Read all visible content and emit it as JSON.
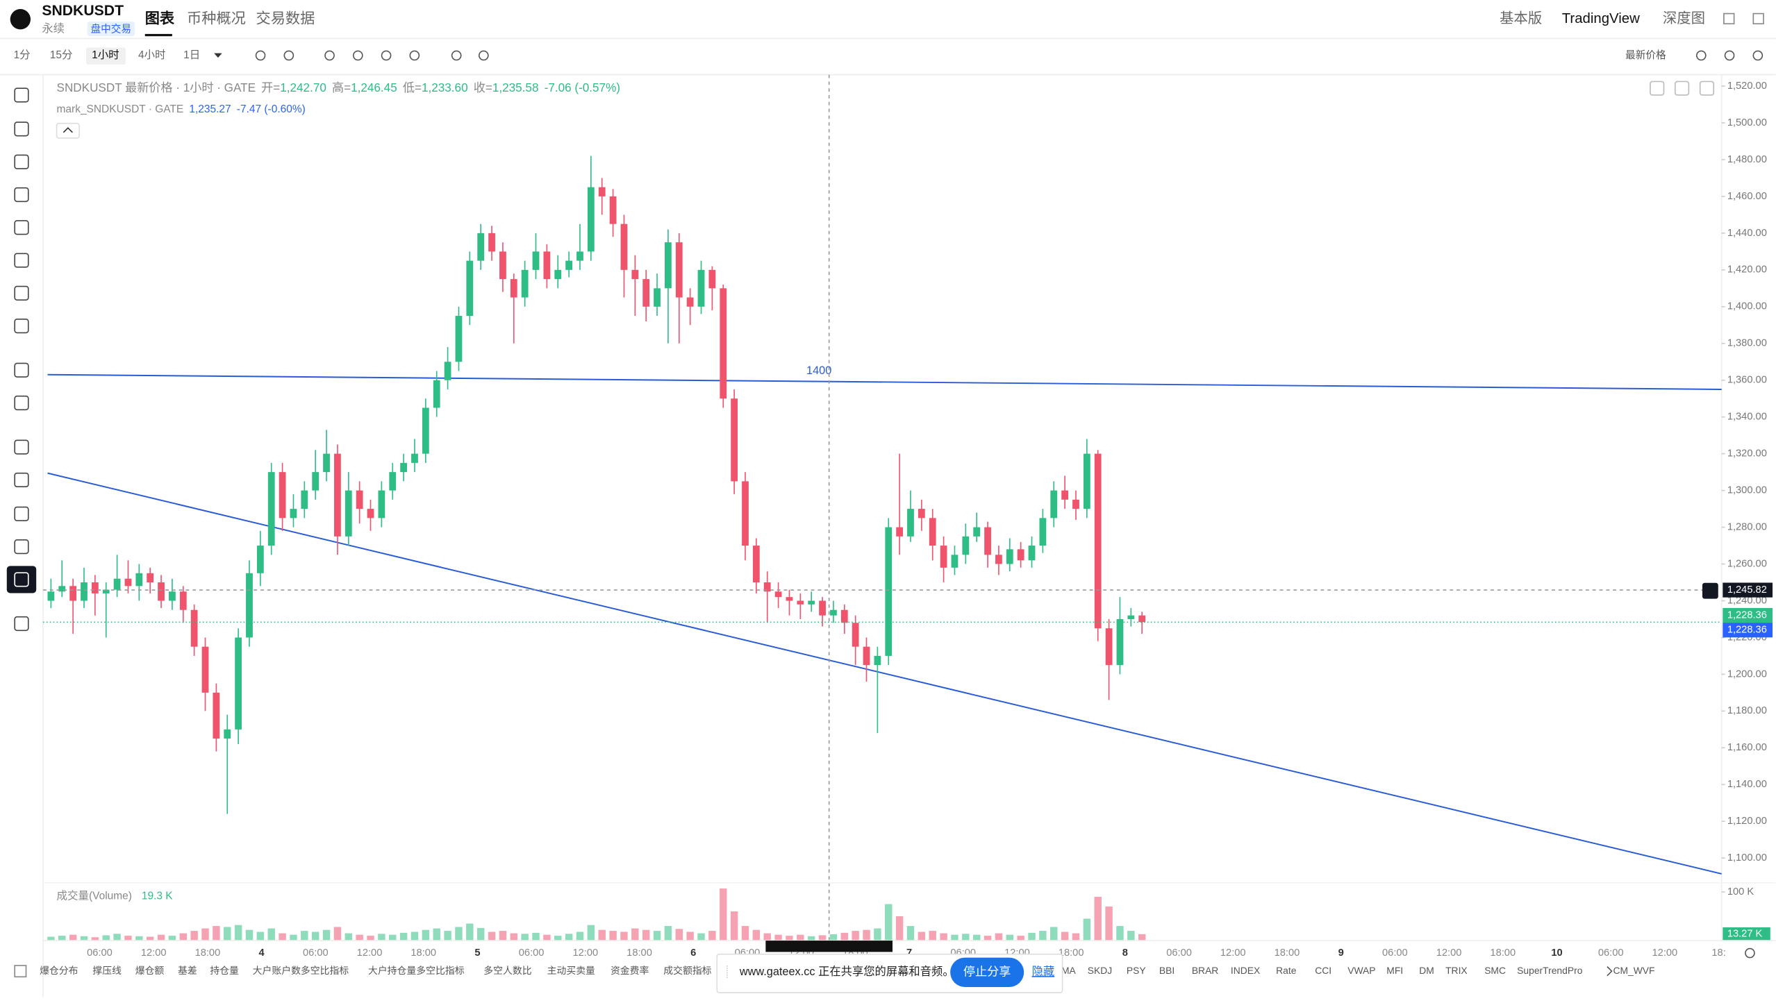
{
  "header": {
    "symbol": "SNDKUSDT",
    "contract": "永续",
    "badge": "盘中交易",
    "tabs": [
      "图表",
      "币种概况",
      "交易数据"
    ],
    "right": [
      "基本版",
      "TradingView",
      "深度图"
    ]
  },
  "toolbar": {
    "intervals": [
      "1分",
      "15分",
      "1小时",
      "4小时",
      "1日"
    ],
    "price_type": "最新价格"
  },
  "legend": {
    "info": [
      "开=",
      "1,242.70",
      "高=",
      "1,246.45",
      "低=",
      "1,233.60",
      "收=",
      "1,235.58",
      "-7.06 (-0.57%)"
    ],
    "mark": [
      "mark_SNDKUSDT · GATE",
      "1,235.27",
      "-7.47 (-0.60%)"
    ]
  },
  "chart_data": {
    "type": "candlestick",
    "title": "SNDKUSDT 最新价格 · 1小时 · GATE",
    "annotation": "1400",
    "grid": false,
    "ylim": [
      1086.5,
      1526.2
    ],
    "yticks": [
      {
        "value": 1100,
        "label": "1,100.00"
      },
      {
        "value": 1120,
        "label": "1,120.00"
      },
      {
        "value": 1140,
        "label": "1,140.00"
      },
      {
        "value": 1160,
        "label": "1,160.00"
      },
      {
        "value": 1180,
        "label": "1,180.00"
      },
      {
        "value": 1200,
        "label": "1,200.00"
      },
      {
        "value": 1220,
        "label": "1,220.00"
      },
      {
        "value": 1240,
        "label": "1,240.00"
      },
      {
        "value": 1260,
        "label": "1,260.00"
      },
      {
        "value": 1280,
        "label": "1,280.00"
      },
      {
        "value": 1300,
        "label": "1,300.00"
      },
      {
        "value": 1320,
        "label": "1,320.00"
      },
      {
        "value": 1340,
        "label": "1,340.00"
      },
      {
        "value": 1360,
        "label": "1,360.00"
      },
      {
        "value": 1380,
        "label": "1,380.00"
      },
      {
        "value": 1400,
        "label": "1,400.00"
      },
      {
        "value": 1420,
        "label": "1,420.00"
      },
      {
        "value": 1440,
        "label": "1,440.00"
      },
      {
        "value": 1460,
        "label": "1,460.00"
      },
      {
        "value": 1480,
        "label": "1,480.00"
      },
      {
        "value": 1500,
        "label": "1,500.00"
      },
      {
        "value": 1520,
        "label": "1,520.00"
      }
    ],
    "price_labels": [
      {
        "value": 1245.82,
        "label": "1,245.82",
        "color": "#131722"
      },
      {
        "value": 1228.36,
        "label": "1,228.36",
        "color": "#2ebd85"
      },
      {
        "value": 1228.36,
        "label": "1,228.36",
        "color": "#2962ff"
      }
    ],
    "xtick_labels": [
      "06:00",
      "12:00",
      "18:00",
      "4",
      "06:00",
      "12:00",
      "18:00",
      "5",
      "06:00",
      "12:00",
      "18:00",
      "6",
      "06:00",
      "12:00",
      "18:00",
      "7",
      "06:00",
      "12:00",
      "18:00",
      "8",
      "06:00",
      "12:00",
      "18:00",
      "9",
      "06:00",
      "12:00",
      "18:00",
      "10",
      "06:00",
      "12:00",
      "18:"
    ],
    "up_color": "#2ebd85",
    "down_color": "#f0546d",
    "series": [
      {
        "ohlc": [
          [
            1240,
            1252,
            1236,
            1245
          ],
          [
            1245,
            1262,
            1242,
            1248
          ],
          [
            1248,
            1252,
            1222,
            1240
          ],
          [
            1240,
            1258,
            1236,
            1250
          ],
          [
            1250,
            1254,
            1232,
            1244
          ],
          [
            1244,
            1250,
            1220,
            1246
          ],
          [
            1246,
            1265,
            1242,
            1252
          ],
          [
            1252,
            1262,
            1244,
            1248
          ],
          [
            1248,
            1260,
            1240,
            1255
          ],
          [
            1255,
            1258,
            1244,
            1250
          ],
          [
            1250,
            1254,
            1236,
            1240
          ],
          [
            1240,
            1252,
            1235,
            1245
          ],
          [
            1245,
            1248,
            1228,
            1235
          ],
          [
            1235,
            1238,
            1210,
            1215
          ],
          [
            1215,
            1220,
            1180,
            1190
          ],
          [
            1190,
            1195,
            1158,
            1165
          ],
          [
            1165,
            1178,
            1124,
            1170
          ],
          [
            1170,
            1225,
            1162,
            1220
          ],
          [
            1220,
            1262,
            1215,
            1255
          ],
          [
            1255,
            1278,
            1248,
            1270
          ],
          [
            1270,
            1315,
            1265,
            1310
          ],
          [
            1310,
            1315,
            1278,
            1285
          ],
          [
            1285,
            1298,
            1280,
            1290
          ],
          [
            1290,
            1305,
            1285,
            1300
          ],
          [
            1300,
            1322,
            1295,
            1310
          ],
          [
            1310,
            1333,
            1305,
            1320
          ],
          [
            1320,
            1325,
            1265,
            1275
          ],
          [
            1275,
            1310,
            1270,
            1300
          ],
          [
            1300,
            1305,
            1282,
            1290
          ],
          [
            1290,
            1295,
            1278,
            1285
          ],
          [
            1285,
            1305,
            1280,
            1300
          ],
          [
            1300,
            1315,
            1295,
            1310
          ],
          [
            1310,
            1320,
            1305,
            1315
          ],
          [
            1315,
            1328,
            1310,
            1320
          ],
          [
            1320,
            1350,
            1315,
            1345
          ],
          [
            1345,
            1365,
            1340,
            1360
          ],
          [
            1360,
            1378,
            1355,
            1370
          ],
          [
            1370,
            1400,
            1365,
            1395
          ],
          [
            1395,
            1430,
            1390,
            1425
          ],
          [
            1425,
            1445,
            1420,
            1440
          ],
          [
            1440,
            1444,
            1425,
            1430
          ],
          [
            1430,
            1435,
            1408,
            1415
          ],
          [
            1415,
            1418,
            1380,
            1405
          ],
          [
            1405,
            1425,
            1400,
            1420
          ],
          [
            1420,
            1440,
            1415,
            1430
          ],
          [
            1430,
            1434,
            1410,
            1415
          ],
          [
            1415,
            1428,
            1410,
            1420
          ],
          [
            1420,
            1430,
            1416,
            1425
          ],
          [
            1425,
            1445,
            1420,
            1430
          ],
          [
            1430,
            1482,
            1425,
            1465
          ],
          [
            1465,
            1470,
            1450,
            1460
          ],
          [
            1460,
            1464,
            1438,
            1445
          ],
          [
            1445,
            1450,
            1405,
            1420
          ],
          [
            1420,
            1428,
            1395,
            1415
          ],
          [
            1415,
            1420,
            1392,
            1400
          ],
          [
            1400,
            1418,
            1395,
            1410
          ],
          [
            1410,
            1442,
            1380,
            1435
          ],
          [
            1435,
            1440,
            1380,
            1405
          ],
          [
            1405,
            1410,
            1390,
            1400
          ],
          [
            1400,
            1425,
            1396,
            1420
          ],
          [
            1420,
            1422,
            1398,
            1410
          ],
          [
            1410,
            1412,
            1345,
            1350
          ],
          [
            1350,
            1355,
            1298,
            1305
          ],
          [
            1305,
            1310,
            1262,
            1270
          ],
          [
            1270,
            1274,
            1244,
            1250
          ],
          [
            1250,
            1256,
            1228,
            1245
          ],
          [
            1245,
            1250,
            1236,
            1242
          ],
          [
            1242,
            1246,
            1232,
            1240
          ],
          [
            1240,
            1244,
            1230,
            1238
          ],
          [
            1238,
            1245,
            1234,
            1240
          ],
          [
            1240,
            1242,
            1226,
            1232
          ],
          [
            1232,
            1240,
            1228,
            1235
          ],
          [
            1235,
            1238,
            1222,
            1228
          ],
          [
            1228,
            1232,
            1205,
            1215
          ],
          [
            1215,
            1220,
            1196,
            1205
          ],
          [
            1205,
            1215,
            1168,
            1210
          ],
          [
            1210,
            1285,
            1205,
            1280
          ],
          [
            1280,
            1320,
            1265,
            1275
          ],
          [
            1275,
            1300,
            1272,
            1290
          ],
          [
            1290,
            1295,
            1278,
            1285
          ],
          [
            1285,
            1290,
            1262,
            1270
          ],
          [
            1270,
            1275,
            1250,
            1258
          ],
          [
            1258,
            1270,
            1254,
            1265
          ],
          [
            1265,
            1282,
            1260,
            1275
          ],
          [
            1275,
            1288,
            1272,
            1280
          ],
          [
            1280,
            1283,
            1258,
            1265
          ],
          [
            1265,
            1270,
            1254,
            1260
          ],
          [
            1260,
            1274,
            1256,
            1268
          ],
          [
            1268,
            1272,
            1258,
            1262
          ],
          [
            1262,
            1275,
            1258,
            1270
          ],
          [
            1270,
            1290,
            1266,
            1285
          ],
          [
            1285,
            1305,
            1280,
            1300
          ],
          [
            1300,
            1308,
            1290,
            1295
          ],
          [
            1295,
            1300,
            1284,
            1290
          ],
          [
            1290,
            1328,
            1285,
            1320
          ],
          [
            1320,
            1322,
            1218,
            1225
          ],
          [
            1225,
            1230,
            1186,
            1205
          ],
          [
            1205,
            1242,
            1200,
            1230
          ],
          [
            1230,
            1236,
            1226,
            1232
          ],
          [
            1232,
            1234,
            1222,
            1228.36
          ]
        ]
      }
    ],
    "volume": {
      "name": "成交量(Volume)",
      "hover_label": "19.3 K",
      "last_label": "13.27 K",
      "ylim": [
        0,
        111.6
      ],
      "yticks": [
        {
          "value": 100,
          "label": "100 K"
        }
      ],
      "values": [
        8,
        10,
        12,
        9,
        7,
        11,
        14,
        10,
        9,
        8,
        12,
        10,
        15,
        20,
        25,
        30,
        28,
        32,
        22,
        18,
        25,
        15,
        12,
        20,
        18,
        22,
        28,
        15,
        12,
        10,
        14,
        12,
        16,
        18,
        22,
        25,
        20,
        28,
        35,
        26,
        18,
        20,
        15,
        14,
        16,
        12,
        10,
        14,
        18,
        32,
        22,
        20,
        18,
        25,
        22,
        20,
        30,
        24,
        18,
        15,
        20,
        107,
        60,
        30,
        22,
        15,
        12,
        10,
        12,
        9,
        11,
        13,
        16,
        20,
        22,
        25,
        75,
        50,
        30,
        18,
        20,
        15,
        12,
        14,
        12,
        10,
        15,
        12,
        10,
        16,
        20,
        28,
        18,
        15,
        45,
        90,
        70,
        30,
        20,
        13.27
      ]
    }
  },
  "indicators": {
    "left": [
      "爆仓分布",
      "撑压线",
      "爆仓额",
      "基差",
      "持仓量",
      "大户账户数多空比指标",
      "大户持仓量多空比指标",
      "多空人数比",
      "主动买卖量",
      "资金费率",
      "成交额指标"
    ],
    "right": [
      "MA",
      "SKDJ",
      "PSY",
      "BBI",
      "BRAR",
      "INDEX",
      "Rate",
      "CCI",
      "VWAP",
      "MFI",
      "DM",
      "TRIX",
      "SMC",
      "SuperTrendPro",
      "CM_WVF"
    ]
  },
  "share_popup": {
    "message": "www.gateex.cc 正在共享您的屏幕和音频。",
    "stop": "停止分享",
    "hide": "隐藏"
  }
}
